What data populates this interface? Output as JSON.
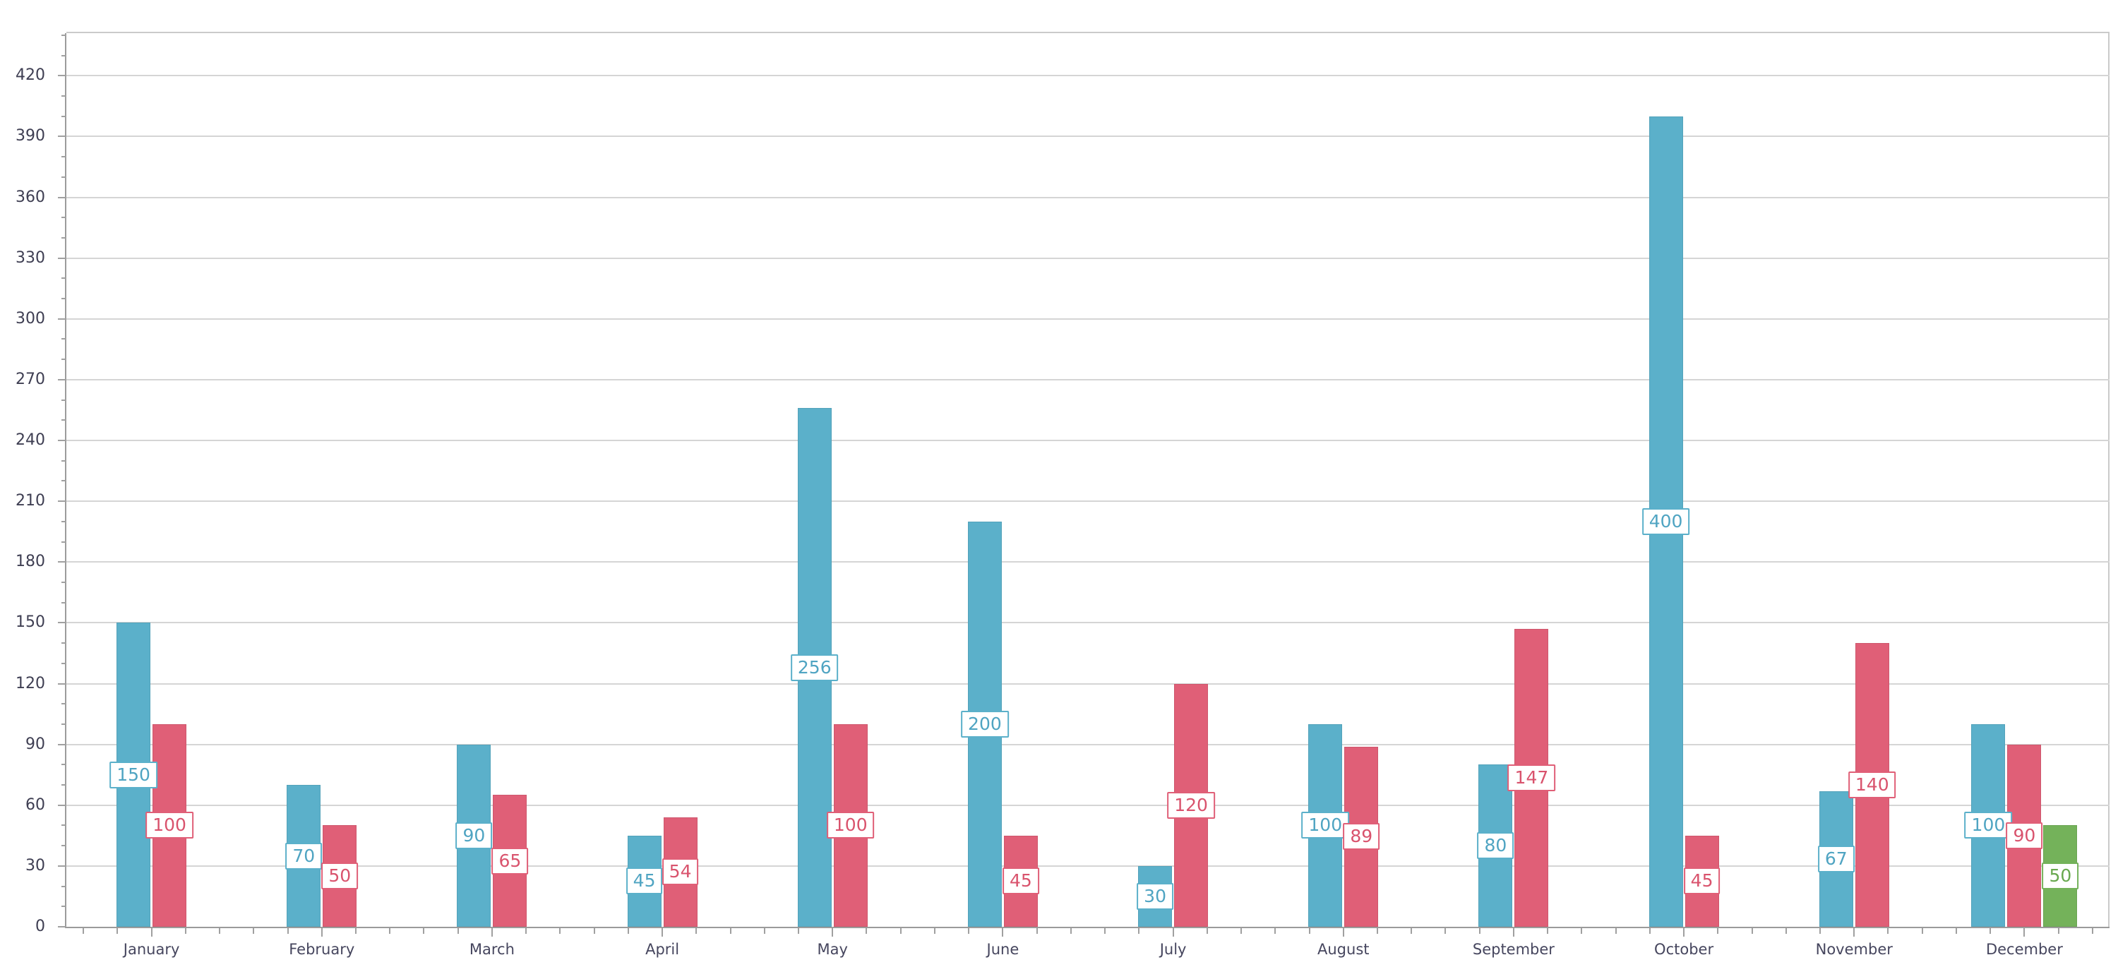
{
  "chart_data": {
    "type": "bar",
    "title": "",
    "xlabel": "",
    "ylabel": "",
    "legend": "none",
    "grid": "horizontal-major",
    "categories": [
      "January",
      "February",
      "March",
      "April",
      "May",
      "June",
      "July",
      "August",
      "September",
      "October",
      "November",
      "December"
    ],
    "series": [
      {
        "name": "teal-series",
        "color": "#5BB0CA",
        "label_text_color": "#4FA4C2",
        "values": [
          150,
          70,
          90,
          45,
          256,
          200,
          30,
          100,
          80,
          400,
          67,
          100
        ]
      },
      {
        "name": "rose-series",
        "color": "#E05F77",
        "label_text_color": "#D9536D",
        "values": [
          100,
          50,
          65,
          54,
          100,
          45,
          120,
          89,
          147,
          45,
          140,
          90
        ]
      },
      {
        "name": "green-series",
        "color": "#74B25A",
        "label_text_color": "#68A84E",
        "values": [
          null,
          null,
          null,
          null,
          null,
          null,
          null,
          null,
          null,
          null,
          null,
          50
        ]
      }
    ],
    "data_labels_visible": true,
    "y_axis": {
      "min": 0,
      "max": 420,
      "padded_max": 441,
      "major_step": 30,
      "minor_step": 10,
      "tick_labels": [
        "0",
        "30",
        "60",
        "90",
        "120",
        "150",
        "180",
        "210",
        "240",
        "270",
        "300",
        "330",
        "360",
        "390",
        "420"
      ]
    }
  },
  "style": {
    "gridline_color": "#d5d5d5",
    "axis_line_color": "#9b9b9b",
    "plot_border_color": "#cacaca",
    "tick_color": "#a0a0a0",
    "y_label_color": "#3e3e52",
    "x_label_color": "#46465e",
    "background_color": "#ffffff",
    "label_box_background": "#ffffff"
  }
}
